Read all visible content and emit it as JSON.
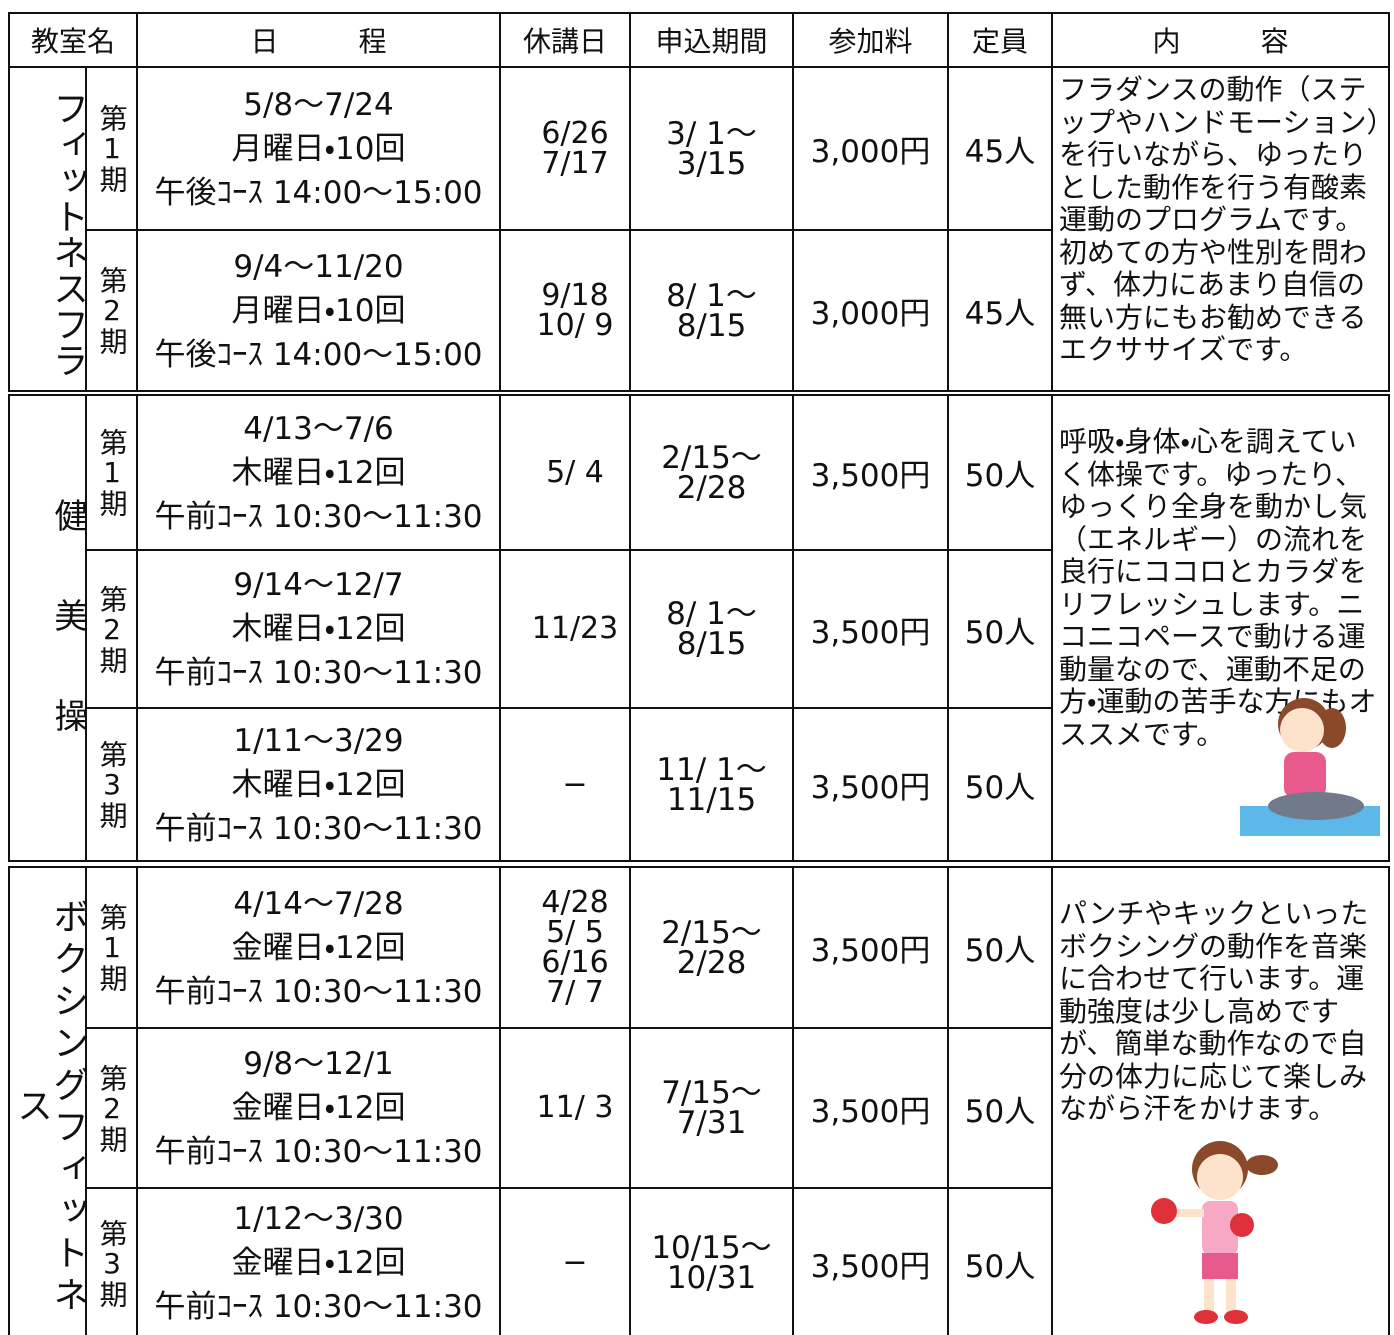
{
  "header": [
    "教室名",
    "日程",
    "休講日",
    "申込期間",
    "参加料",
    "定員",
    "内容"
  ],
  "groups": [
    {
      "name": "フィットネスフラ",
      "description": "フラダンスの動作（ステップやハンドモーション）を行いながら、ゆったりとした動作を行う有酸素運動のプログラムです。初めての方や性別を問わず、体力にあまり自信の無い方にもお勧めできるエクササイズです。",
      "rows": [
        {
          "period": "第1期",
          "schedule": [
            "5/8〜7/24",
            "月曜日・10回",
            "午後ｺｰｽ 14:00〜15:00"
          ],
          "holidays": [
            "6/26",
            "7/17"
          ],
          "application": [
            "3/ 1〜",
            "3/15"
          ],
          "fee": "3,000円",
          "capacity": "45人"
        },
        {
          "period": "第2期",
          "schedule": [
            "9/4〜11/20",
            "月曜日・10回",
            "午後ｺｰｽ 14:00〜15:00"
          ],
          "holidays": [
            "9/18",
            "10/ 9"
          ],
          "application": [
            "8/ 1〜",
            "8/15"
          ],
          "fee": "3,000円",
          "capacity": "45人"
        }
      ]
    },
    {
      "name": "健美操",
      "description": "呼吸・身体・心を調えていく体操です。ゆったり、ゆっくり全身を動かし気（エネルギー）の流れを良行にココロとカラダをリフレッシュします。ニコニコペースで動ける運動量なので、運動不足の方・運動の苦手な方にもオススメです。",
      "rows": [
        {
          "period": "第1期",
          "schedule": [
            "4/13〜7/6",
            "木曜日・12回",
            "午前ｺｰｽ 10:30〜11:30"
          ],
          "holidays": [
            "5/ 4"
          ],
          "application": [
            "2/15〜",
            "2/28"
          ],
          "fee": "3,500円",
          "capacity": "50人"
        },
        {
          "period": "第2期",
          "schedule": [
            "9/14〜12/7",
            "木曜日・12回",
            "午前ｺｰｽ 10:30〜11:30"
          ],
          "holidays": [
            "11/23"
          ],
          "application": [
            "8/ 1〜",
            "8/15"
          ],
          "fee": "3,500円",
          "capacity": "50人"
        },
        {
          "period": "第3期",
          "schedule": [
            "1/11〜3/29",
            "木曜日・12回",
            "午前ｺｰｽ 10:30〜11:30"
          ],
          "holidays": [
            "−"
          ],
          "application": [
            "11/ 1〜",
            "11/15"
          ],
          "fee": "3,500円",
          "capacity": "50人"
        }
      ]
    },
    {
      "name": "ボクシングフィットネス",
      "description": "パンチやキックといったボクシングの動作を音楽に合わせて行います。運動強度は少し高めですが、簡単な動作なので自分の体力に応じて楽しみながら汗をかけます。",
      "rows": [
        {
          "period": "第1期",
          "schedule": [
            "4/14〜7/28",
            "金曜日・12回",
            "午前ｺｰｽ 10:30〜11:30"
          ],
          "holidays": [
            "4/28",
            "5/ 5",
            "6/16",
            "7/ 7"
          ],
          "application": [
            "2/15〜",
            "2/28"
          ],
          "fee": "3,500円",
          "capacity": "50人"
        },
        {
          "period": "第2期",
          "schedule": [
            "9/8〜12/1",
            "金曜日・12回",
            "午前ｺｰｽ 10:30〜11:30"
          ],
          "holidays": [
            "11/ 3"
          ],
          "application": [
            "7/15〜",
            "7/31"
          ],
          "fee": "3,500円",
          "capacity": "50人"
        },
        {
          "period": "第3期",
          "schedule": [
            "1/12〜3/30",
            "金曜日・12回",
            "午前ｺｰｽ 10:30〜11:30"
          ],
          "holidays": [
            "−"
          ],
          "application": [
            "10/15〜",
            "10/31"
          ],
          "fee": "3,500円",
          "capacity": "50人"
        }
      ]
    }
  ]
}
